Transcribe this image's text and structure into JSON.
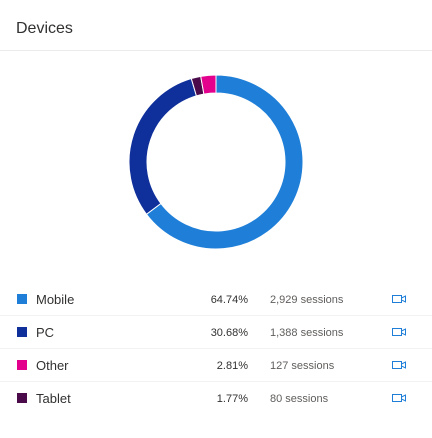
{
  "card": {
    "title": "Devices"
  },
  "chart_data": {
    "type": "pie",
    "categories": [
      "Mobile",
      "PC",
      "Other",
      "Tablet"
    ],
    "values": [
      64.74,
      30.68,
      2.81,
      1.77
    ],
    "sessions": [
      2929,
      1388,
      127,
      80
    ],
    "colors": [
      "#1f7fd8",
      "#0f2f9a",
      "#e3008c",
      "#4b0b4b"
    ],
    "donut": true
  },
  "legend": {
    "items": [
      {
        "label": "Mobile",
        "percent": "64.74%",
        "sessions": "2,929 sessions",
        "color": "#1f7fd8",
        "icon": "video-icon"
      },
      {
        "label": "PC",
        "percent": "30.68%",
        "sessions": "1,388 sessions",
        "color": "#0f2f9a",
        "icon": "video-icon"
      },
      {
        "label": "Other",
        "percent": "2.81%",
        "sessions": "127 sessions",
        "color": "#e3008c",
        "icon": "video-icon"
      },
      {
        "label": "Tablet",
        "percent": "1.77%",
        "sessions": "80 sessions",
        "color": "#4b0b4b",
        "icon": "video-icon"
      }
    ]
  }
}
